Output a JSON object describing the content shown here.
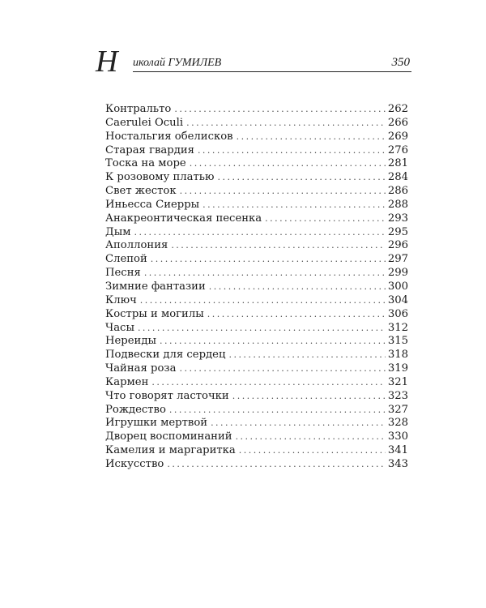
{
  "header": {
    "dropcap": "Н",
    "running_head": "иколай ГУМИЛЕВ",
    "page_number": "350"
  },
  "toc": [
    {
      "title": "Контральто",
      "page": "262"
    },
    {
      "title": "Caerulei Oculi",
      "page": "266"
    },
    {
      "title": "Ностальгия обелисков",
      "page": "269"
    },
    {
      "title": "Старая гвардия",
      "page": "276"
    },
    {
      "title": "Тоска на море",
      "page": "281"
    },
    {
      "title": "К розовому платью",
      "page": "284"
    },
    {
      "title": "Свет жесток",
      "page": "286"
    },
    {
      "title": "Иньесса Сиерры",
      "page": "288"
    },
    {
      "title": "Анакреонтическая песенка",
      "page": "293"
    },
    {
      "title": "Дым",
      "page": "295"
    },
    {
      "title": "Аполлония",
      "page": "296"
    },
    {
      "title": "Слепой",
      "page": "297"
    },
    {
      "title": "Песня",
      "page": "299"
    },
    {
      "title": "Зимние фантазии",
      "page": "300"
    },
    {
      "title": "Ключ",
      "page": "304"
    },
    {
      "title": "Костры и могилы",
      "page": "306"
    },
    {
      "title": "Часы",
      "page": "312"
    },
    {
      "title": "Нереиды",
      "page": "315"
    },
    {
      "title": "Подвески для сердец",
      "page": "318"
    },
    {
      "title": "Чайная роза",
      "page": "319"
    },
    {
      "title": "Кармен",
      "page": "321"
    },
    {
      "title": "Что говорят ласточки",
      "page": "323"
    },
    {
      "title": "Рождество",
      "page": "327"
    },
    {
      "title": "Игрушки мертвой",
      "page": "328"
    },
    {
      "title": "Дворец воспоминаний",
      "page": "330"
    },
    {
      "title": "Камелия и маргаритка",
      "page": "341"
    },
    {
      "title": "Искусство",
      "page": "343"
    }
  ]
}
